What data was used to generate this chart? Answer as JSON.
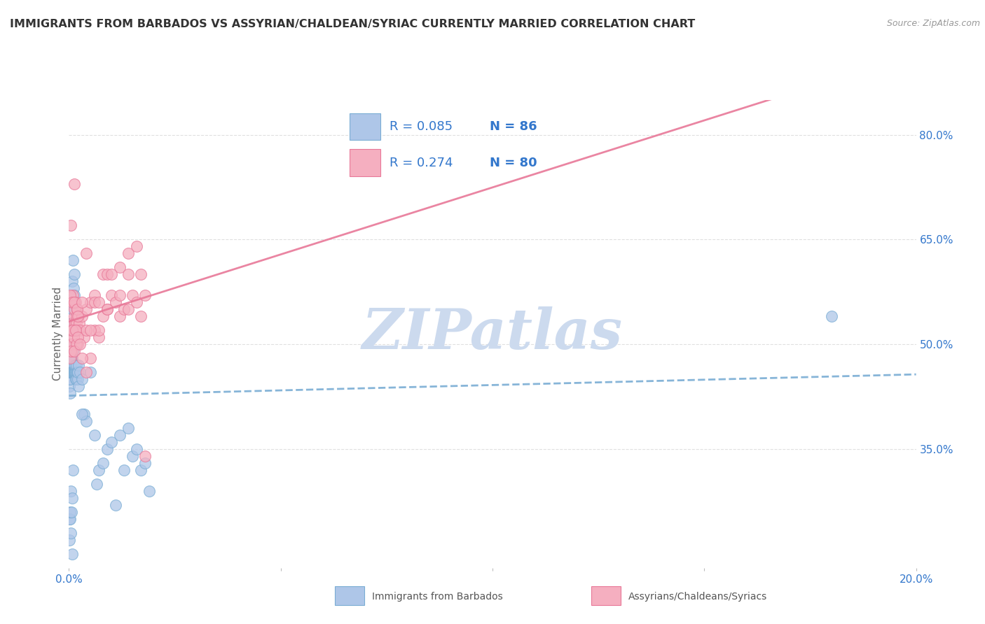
{
  "title": "IMMIGRANTS FROM BARBADOS VS ASSYRIAN/CHALDEAN/SYRIAC CURRENTLY MARRIED CORRELATION CHART",
  "source": "Source: ZipAtlas.com",
  "ylabel": "Currently Married",
  "ylabel_right_labels": [
    "80.0%",
    "65.0%",
    "50.0%",
    "35.0%"
  ],
  "ylabel_right_values": [
    0.8,
    0.65,
    0.5,
    0.35
  ],
  "legend_label1": "Immigrants from Barbados",
  "legend_label2": "Assyrians/Chaldeans/Syriacs",
  "R1": 0.085,
  "N1": 86,
  "R2": 0.274,
  "N2": 80,
  "color1": "#aec6e8",
  "color2": "#f5afc0",
  "edge_color1": "#7aadd4",
  "edge_color2": "#e87898",
  "line_color1": "#7aadd4",
  "line_color2": "#e87898",
  "text_color_blue": "#3377cc",
  "text_color_title": "#333333",
  "watermark": "ZIPatlas",
  "watermark_color": "#ccdaee",
  "xlim": [
    0.0,
    0.2
  ],
  "ylim": [
    0.18,
    0.85
  ],
  "grid_color": "#e0e0e0",
  "blue_x": [
    0.0001,
    0.0001,
    0.0001,
    0.0002,
    0.0002,
    0.0002,
    0.0002,
    0.0003,
    0.0003,
    0.0003,
    0.0003,
    0.0004,
    0.0004,
    0.0004,
    0.0004,
    0.0005,
    0.0005,
    0.0005,
    0.0005,
    0.0006,
    0.0006,
    0.0006,
    0.0007,
    0.0007,
    0.0007,
    0.0008,
    0.0008,
    0.0008,
    0.0009,
    0.0009,
    0.001,
    0.001,
    0.001,
    0.0011,
    0.0011,
    0.0012,
    0.0012,
    0.0013,
    0.0013,
    0.0014,
    0.0014,
    0.0015,
    0.0015,
    0.0016,
    0.0016,
    0.0017,
    0.0018,
    0.0018,
    0.0019,
    0.002,
    0.002,
    0.0021,
    0.0022,
    0.0023,
    0.0025,
    0.003,
    0.0035,
    0.004,
    0.005,
    0.006,
    0.0065,
    0.007,
    0.008,
    0.009,
    0.01,
    0.011,
    0.012,
    0.013,
    0.014,
    0.015,
    0.016,
    0.017,
    0.018,
    0.019,
    0.0001,
    0.0001,
    0.0002,
    0.0003,
    0.0004,
    0.0005,
    0.0006,
    0.0007,
    0.0008,
    0.001,
    0.003,
    0.18
  ],
  "blue_y": [
    0.46,
    0.44,
    0.45,
    0.47,
    0.43,
    0.46,
    0.45,
    0.48,
    0.46,
    0.47,
    0.49,
    0.48,
    0.46,
    0.5,
    0.47,
    0.47,
    0.5,
    0.52,
    0.46,
    0.46,
    0.53,
    0.48,
    0.55,
    0.46,
    0.59,
    0.48,
    0.46,
    0.55,
    0.46,
    0.62,
    0.49,
    0.46,
    0.56,
    0.58,
    0.46,
    0.57,
    0.46,
    0.46,
    0.6,
    0.46,
    0.46,
    0.46,
    0.47,
    0.46,
    0.45,
    0.46,
    0.47,
    0.45,
    0.46,
    0.46,
    0.45,
    0.46,
    0.47,
    0.44,
    0.46,
    0.45,
    0.4,
    0.39,
    0.46,
    0.37,
    0.3,
    0.32,
    0.33,
    0.35,
    0.36,
    0.27,
    0.37,
    0.32,
    0.38,
    0.34,
    0.35,
    0.32,
    0.33,
    0.29,
    0.22,
    0.25,
    0.25,
    0.26,
    0.29,
    0.23,
    0.26,
    0.2,
    0.28,
    0.32,
    0.4,
    0.54
  ],
  "pink_x": [
    0.0003,
    0.0004,
    0.0005,
    0.0005,
    0.0006,
    0.0007,
    0.0008,
    0.0009,
    0.001,
    0.001,
    0.0011,
    0.0012,
    0.0013,
    0.0013,
    0.0014,
    0.0015,
    0.0016,
    0.0017,
    0.0018,
    0.0019,
    0.002,
    0.0021,
    0.0022,
    0.0024,
    0.0025,
    0.003,
    0.0035,
    0.004,
    0.004,
    0.005,
    0.005,
    0.006,
    0.006,
    0.007,
    0.007,
    0.008,
    0.008,
    0.009,
    0.009,
    0.01,
    0.011,
    0.012,
    0.012,
    0.013,
    0.014,
    0.014,
    0.015,
    0.016,
    0.017,
    0.018,
    0.0003,
    0.0005,
    0.0007,
    0.0009,
    0.0011,
    0.0013,
    0.0015,
    0.0017,
    0.0019,
    0.002,
    0.003,
    0.004,
    0.005,
    0.006,
    0.007,
    0.009,
    0.01,
    0.012,
    0.014,
    0.016,
    0.0004,
    0.0008,
    0.0012,
    0.0016,
    0.002,
    0.0025,
    0.003,
    0.004,
    0.018,
    0.017
  ],
  "pink_y": [
    0.48,
    0.5,
    0.52,
    0.67,
    0.51,
    0.49,
    0.53,
    0.56,
    0.52,
    0.57,
    0.56,
    0.54,
    0.55,
    0.73,
    0.53,
    0.52,
    0.56,
    0.54,
    0.53,
    0.55,
    0.52,
    0.5,
    0.54,
    0.53,
    0.52,
    0.54,
    0.51,
    0.55,
    0.63,
    0.56,
    0.48,
    0.52,
    0.57,
    0.51,
    0.52,
    0.6,
    0.54,
    0.55,
    0.6,
    0.57,
    0.56,
    0.54,
    0.61,
    0.55,
    0.55,
    0.6,
    0.57,
    0.56,
    0.6,
    0.57,
    0.57,
    0.5,
    0.56,
    0.52,
    0.51,
    0.56,
    0.52,
    0.5,
    0.55,
    0.54,
    0.56,
    0.52,
    0.52,
    0.56,
    0.56,
    0.55,
    0.6,
    0.57,
    0.63,
    0.64,
    0.49,
    0.52,
    0.49,
    0.52,
    0.51,
    0.5,
    0.48,
    0.46,
    0.34,
    0.54
  ]
}
